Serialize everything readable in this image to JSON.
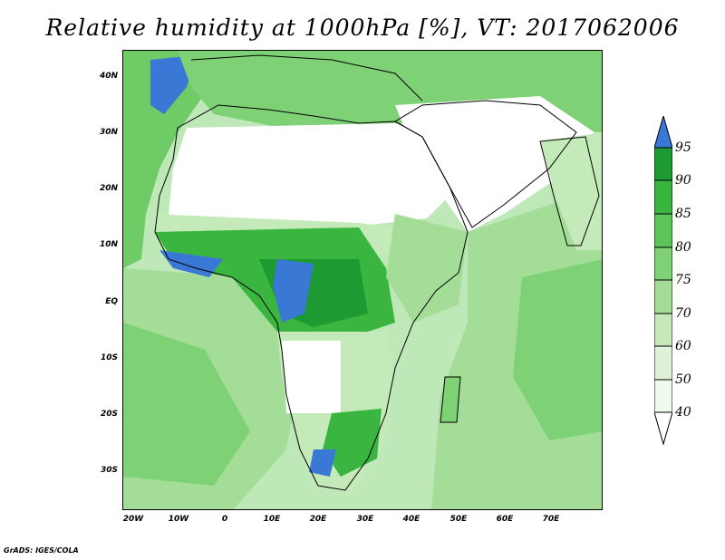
{
  "title": "Relative humidity at 1000hPa [%], VT: 2017062006",
  "latitude_labels": [
    "40N",
    "30N",
    "20N",
    "10N",
    "EQ",
    "10S",
    "20S",
    "30S"
  ],
  "longitude_labels": [
    "20W",
    "10W",
    "0",
    "10E",
    "20E",
    "30E",
    "40E",
    "50E",
    "60E",
    "70E"
  ],
  "colorbar": {
    "levels": [
      "95",
      "90",
      "85",
      "80",
      "75",
      "70",
      "60",
      "50",
      "40"
    ],
    "colors": {
      "above_95": "#3a78d6",
      "90_95": "#1e9a33",
      "85_90": "#3ab53f",
      "80_85": "#5cc55a",
      "75_80": "#7fd176",
      "70_75": "#a3dd98",
      "60_70": "#c5eab9",
      "50_60": "#ddf2d6",
      "40_50": "#eefaeb",
      "below_40": "#ffffff"
    }
  },
  "credit": "GrADS: IGES/COLA"
}
